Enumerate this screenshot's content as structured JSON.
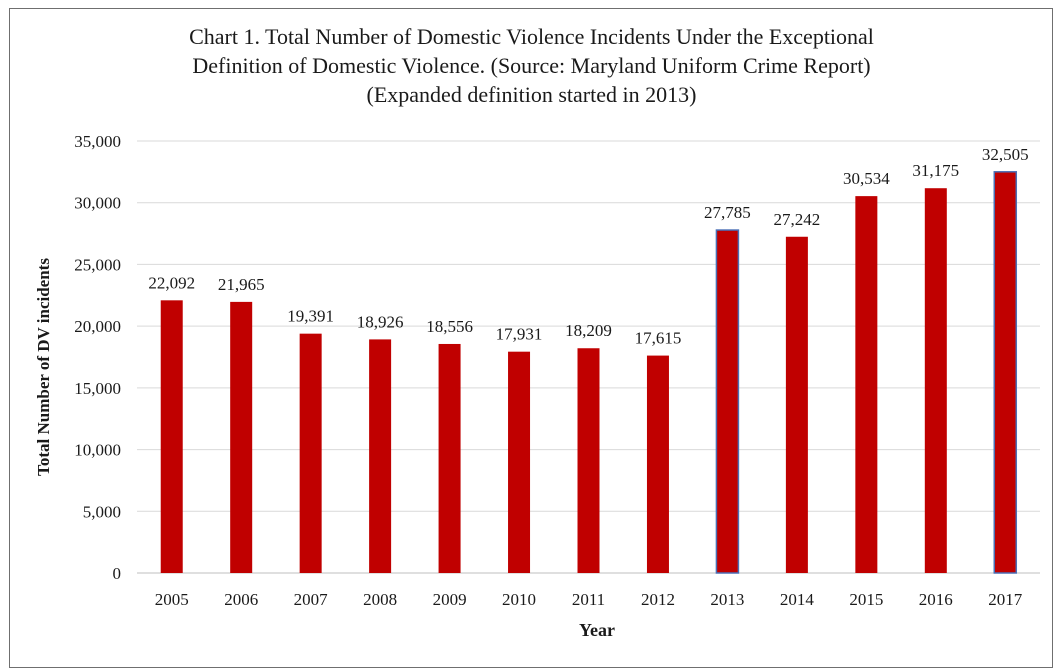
{
  "chart_data": {
    "type": "bar",
    "title_lines": [
      "Chart 1. Total Number of Domestic Violence Incidents Under the Exceptional",
      "Definition of Domestic Violence. (Source: Maryland Uniform Crime Report)",
      "(Expanded definition started in 2013)"
    ],
    "xlabel": "Year",
    "ylabel": "Total Number of DV incidents",
    "categories": [
      "2005",
      "2006",
      "2007",
      "2008",
      "2009",
      "2010",
      "2011",
      "2012",
      "2013",
      "2014",
      "2015",
      "2016",
      "2017"
    ],
    "values": [
      22092,
      21965,
      19391,
      18926,
      18556,
      17931,
      18209,
      17615,
      27785,
      27242,
      30534,
      31175,
      32505
    ],
    "value_labels": [
      "22,092",
      "21,965",
      "19,391",
      "18,926",
      "18,556",
      "17,931",
      "18,209",
      "17,615",
      "27,785",
      "27,242",
      "30,534",
      "31,175",
      "32,505"
    ],
    "y_ticks": [
      0,
      5000,
      10000,
      15000,
      20000,
      25000,
      30000,
      35000
    ],
    "y_tick_labels": [
      "0",
      "5,000",
      "10,000",
      "15,000",
      "20,000",
      "25,000",
      "30,000",
      "35,000"
    ],
    "ylim": [
      0,
      35000
    ],
    "grid": true,
    "bar_color": "#c00000",
    "highlight_edge_color": "#4a6fb5",
    "highlighted_categories": [
      "2013",
      "2017"
    ]
  }
}
